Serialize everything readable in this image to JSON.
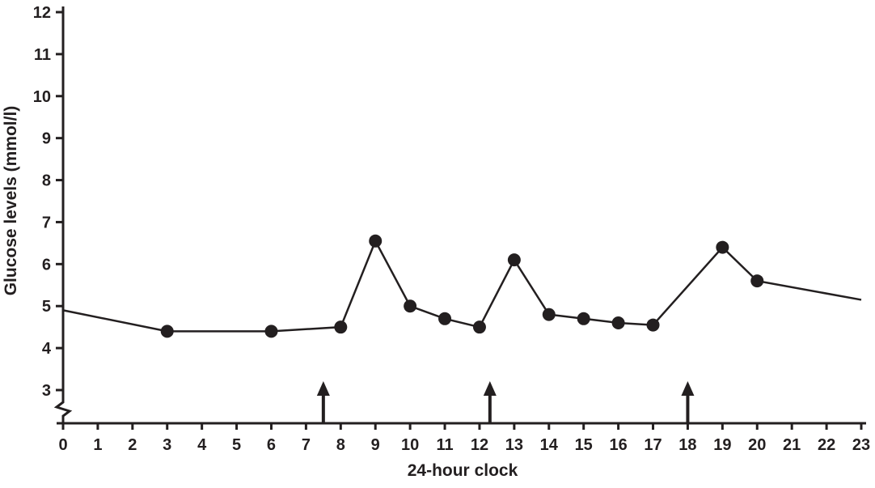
{
  "chart_data": {
    "type": "line",
    "title": "",
    "xlabel": "24-hour clock",
    "ylabel": "Glucose levels (mmol/l)",
    "xlim": [
      0,
      23
    ],
    "ylim": [
      3,
      12
    ],
    "x_ticks": [
      0,
      1,
      2,
      3,
      4,
      5,
      6,
      7,
      8,
      9,
      10,
      11,
      12,
      13,
      14,
      15,
      16,
      17,
      18,
      19,
      20,
      21,
      22,
      23
    ],
    "y_ticks": [
      3,
      4,
      5,
      6,
      7,
      8,
      9,
      10,
      11,
      12
    ],
    "y_axis_break": true,
    "grid": false,
    "legend": false,
    "line_color": "#231f20",
    "marker_color": "#231f20",
    "series": [
      {
        "name": "glucose-levels",
        "points": [
          {
            "x": 0,
            "y": 4.9,
            "marker": false
          },
          {
            "x": 3,
            "y": 4.4,
            "marker": true
          },
          {
            "x": 6,
            "y": 4.4,
            "marker": true
          },
          {
            "x": 8,
            "y": 4.5,
            "marker": true
          },
          {
            "x": 9,
            "y": 6.55,
            "marker": true
          },
          {
            "x": 10,
            "y": 5.0,
            "marker": true
          },
          {
            "x": 11,
            "y": 4.7,
            "marker": true
          },
          {
            "x": 12,
            "y": 4.5,
            "marker": true
          },
          {
            "x": 13,
            "y": 6.1,
            "marker": true
          },
          {
            "x": 14,
            "y": 4.8,
            "marker": true
          },
          {
            "x": 15,
            "y": 4.7,
            "marker": true
          },
          {
            "x": 16,
            "y": 4.6,
            "marker": true
          },
          {
            "x": 17,
            "y": 4.55,
            "marker": true
          },
          {
            "x": 19,
            "y": 6.4,
            "marker": true
          },
          {
            "x": 20,
            "y": 5.6,
            "marker": true
          },
          {
            "x": 23,
            "y": 5.15,
            "marker": false
          }
        ]
      }
    ],
    "meal_arrows_x": [
      7.5,
      12.3,
      18
    ]
  }
}
